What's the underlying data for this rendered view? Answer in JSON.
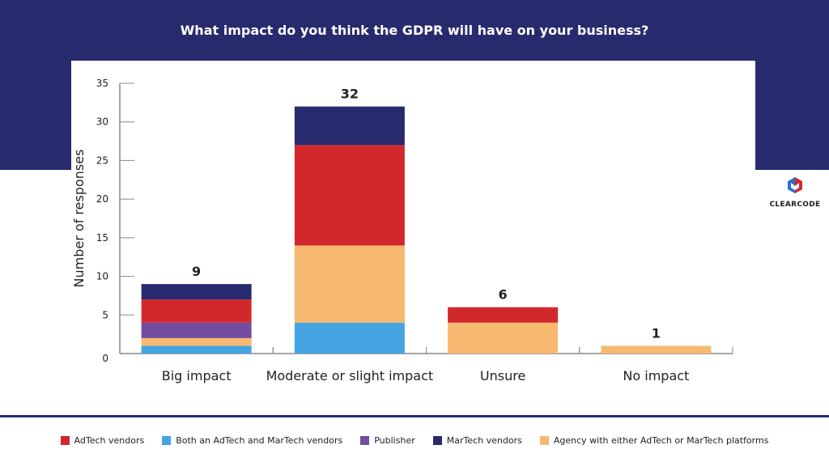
{
  "chart_data": {
    "type": "bar",
    "stacked": true,
    "title": "What impact do you think the GDPR will have on your business?",
    "xlabel": "",
    "ylabel": "Number of responses",
    "ylim": [
      0,
      35
    ],
    "yticks": [
      0,
      5,
      10,
      15,
      20,
      25,
      30,
      35
    ],
    "grid": false,
    "legend_position": "bottom",
    "categories": [
      "Big impact",
      "Moderate or slight impact",
      "Unsure",
      "No impact"
    ],
    "totals": [
      9,
      32,
      6,
      1
    ],
    "series": [
      {
        "name": "Both an AdTech and MarTech vendors",
        "color": "#45a5e3",
        "values": [
          1,
          4,
          0,
          0
        ]
      },
      {
        "name": "Agency with either AdTech or MarTech platforms",
        "color": "#f7b970",
        "values": [
          1,
          10,
          4,
          1
        ]
      },
      {
        "name": "Publisher",
        "color": "#734b9f",
        "values": [
          2,
          0,
          0,
          0
        ]
      },
      {
        "name": "AdTech vendors",
        "color": "#d2282c",
        "values": [
          3,
          13,
          2,
          0
        ]
      },
      {
        "name": "MarTech vendors",
        "color": "#282a6e",
        "values": [
          2,
          5,
          0,
          0
        ]
      }
    ],
    "legend_order": [
      3,
      0,
      2,
      4,
      1
    ]
  },
  "brand": {
    "name": "CLEARCODE",
    "color": "#282a6e"
  }
}
